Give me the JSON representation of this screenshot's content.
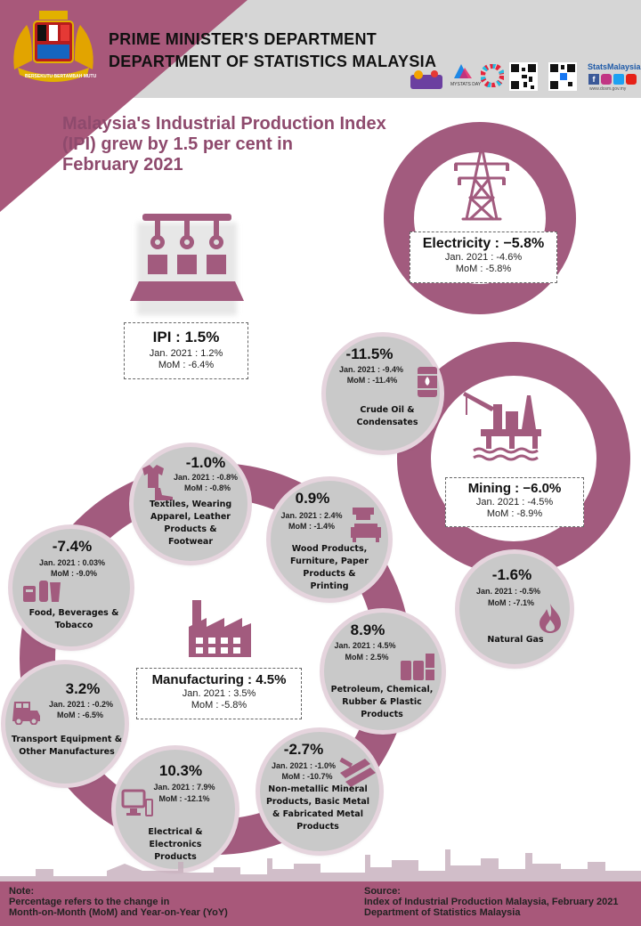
{
  "header": {
    "department_line1": "PRIME MINISTER'S DEPARTMENT",
    "department_line2": "DEPARTMENT OF STATISTICS MALAYSIA",
    "crest_motto": "BERSEKUTU BERTAMBAH MUTU",
    "brand_social": "StatsMalaysia",
    "brand_website": "www.dosm.gov.my",
    "mystats_label": "MYSTATS DAY"
  },
  "title": {
    "line1": "Malaysia's Industrial Production Index",
    "line2": "(IPI) grew by 1.5 per cent in",
    "line3": "February 2021"
  },
  "ipi": {
    "label": "IPI : 1.5%",
    "jan": "Jan. 2021  : 1.2%",
    "mom": "MoM : -6.4%"
  },
  "electricity": {
    "label": "Electricity : −5.8%",
    "jan": "Jan. 2021 : -4.6%",
    "mom": "MoM : -5.8%"
  },
  "mining": {
    "label": "Mining : −6.0%",
    "jan": "Jan. 2021 : -4.5%",
    "mom": "MoM : -8.9%",
    "crude": {
      "value": "-11.5%",
      "jan": "Jan. 2021 : -9.4%",
      "mom": "MoM : -11.4%",
      "name1": "Crude Oil &",
      "name2": "Condensates"
    },
    "gas": {
      "value": "-1.6%",
      "jan": "Jan. 2021 : -0.5%",
      "mom": "MoM   : -7.1%",
      "name1": "Natural Gas"
    }
  },
  "manufacturing": {
    "label": "Manufacturing : 4.5%",
    "jan": "Jan. 2021 : 3.5%",
    "mom": "MoM : -5.8%",
    "textiles": {
      "value": "-1.0%",
      "jan": "Jan. 2021 : -0.8%",
      "mom": "MoM : -0.8%",
      "name1": "Textiles, Wearing",
      "name2": "Apparel, Leather",
      "name3": "Products &",
      "name4": "Footwear"
    },
    "wood": {
      "value": "0.9%",
      "jan": "Jan. 2021 : 2.4%",
      "mom": "MoM : -1.4%",
      "name1": "Wood Products,",
      "name2": "Furniture, Paper",
      "name3": "Products &",
      "name4": "Printing"
    },
    "petroleum": {
      "value": "8.9%",
      "jan": "Jan. 2021 : 4.5%",
      "mom": "MoM  : 2.5%",
      "name1": "Petroleum, Chemical,",
      "name2": "Rubber & Plastic",
      "name3": "Products"
    },
    "nonmetallic": {
      "value": "-2.7%",
      "jan": "Jan. 2021 : -1.0%",
      "mom": "MoM : -10.7%",
      "name1": "Non-metallic Mineral",
      "name2": "Products, Basic Metal",
      "name3": "& Fabricated Metal",
      "name4": "Products"
    },
    "electrical": {
      "value": "10.3%",
      "jan": "Jan. 2021 : 7.9%",
      "mom": "MoM : -12.1%",
      "name1": "Electrical  & Electronics",
      "name2": "Products"
    },
    "transport": {
      "value": "3.2%",
      "jan": "Jan. 2021 : -0.2%",
      "mom": "MoM : -6.5%",
      "name1": "Transport Equipment &",
      "name2": "Other Manufactures"
    },
    "food": {
      "value": "-7.4%",
      "jan": "Jan. 2021 : 0.03%",
      "mom": "MoM  : -9.0%",
      "name1": "Food, Beverages &",
      "name2": "Tobacco"
    }
  },
  "footer": {
    "note_title": "Note:",
    "note_line1": "Percentage refers to the change in",
    "note_line2": "Month-on-Month (MoM) and Year-on-Year (YoY)",
    "source_title": "Source:",
    "source_line1": "Index of Industrial Production Malaysia, February 2021",
    "source_line2": "Department of Statistics Malaysia"
  },
  "colors": {
    "accent": "#a8587a",
    "ring": "#a25b7e",
    "disc": "#c9c9c9",
    "header": "#d6d6d6"
  }
}
